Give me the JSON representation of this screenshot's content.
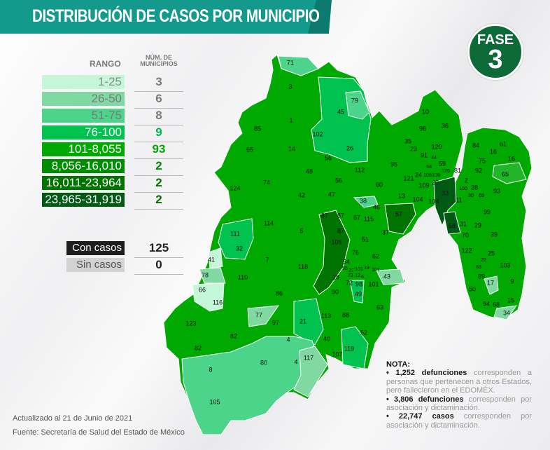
{
  "header": {
    "title": "DISTRIBUCIÓN DE CASOS POR MUNICIPIO"
  },
  "badge": {
    "label": "FASE",
    "number": "3",
    "color": "#0b6a37"
  },
  "legend": {
    "range_header": "RANGO",
    "count_header_line1": "NÚM. DE",
    "count_header_line2": "MUNICIPIOS",
    "rows": [
      {
        "range": "1-25",
        "count": "3",
        "color": "#c4f7d8",
        "text_color": "#8a8a8a",
        "count_color": "#7a7a7a"
      },
      {
        "range": "26-50",
        "count": "6",
        "color": "#7fd9a0",
        "text_color": "#7a7a7a",
        "count_color": "#7a7a7a"
      },
      {
        "range": "51-75",
        "count": "8",
        "color": "#4cd48a",
        "text_color": "#7a7a7a",
        "count_color": "#7a7a7a"
      },
      {
        "range": "76-100",
        "count": "9",
        "color": "#00c24f",
        "text_color": "#ffffff",
        "count_color": "#00b84a"
      },
      {
        "range": "101-8,055",
        "count": "93",
        "color": "#00a900",
        "text_color": "#ffffff",
        "count_color": "#00a900"
      },
      {
        "range": "8,056-16,010",
        "count": "2",
        "color": "#008c00",
        "text_color": "#ffffff",
        "count_color": "#008c00"
      },
      {
        "range": "16,011-23,964",
        "count": "2",
        "color": "#007300",
        "text_color": "#ffffff",
        "count_color": "#007300"
      },
      {
        "range": "23,965-31,919",
        "count": "2",
        "color": "#005a14",
        "text_color": "#ffffff",
        "count_color": "#006e00"
      }
    ],
    "status": [
      {
        "label": "Con casos",
        "count": "125",
        "color": "#1e1e1e",
        "text_color": "#ffffff"
      },
      {
        "label": "Sin casos",
        "count": "0",
        "color": "#d2d2d2",
        "text_color": "#555555"
      }
    ]
  },
  "map": {
    "municipality_labels": [
      "71",
      "3",
      "79",
      "45",
      "1",
      "85",
      "102",
      "26",
      "14",
      "65",
      "56",
      "112",
      "48",
      "56",
      "124",
      "74",
      "42",
      "47",
      "38",
      "87",
      "87",
      "67",
      "115",
      "114",
      "5",
      "111",
      "87",
      "106",
      "51",
      "32",
      "7",
      "118",
      "76",
      "54",
      "62",
      "41",
      "110",
      "78",
      "18",
      "72",
      "98",
      "66",
      "116",
      "86",
      "90",
      "49",
      "77",
      "113",
      "88",
      "21",
      "97",
      "123",
      "82",
      "82",
      "4",
      "40",
      "119",
      "107",
      "52",
      "117",
      "4",
      "80",
      "8",
      "105",
      "46",
      "57",
      "37",
      "55",
      "27",
      "101",
      "19",
      "101",
      "73",
      "12",
      "6",
      "43",
      "101",
      "63",
      "10",
      "96",
      "36",
      "35",
      "23",
      "120",
      "91",
      "44",
      "59",
      "95",
      "53",
      "24",
      "108",
      "109",
      "125",
      "81",
      "121",
      "109",
      "20",
      "2",
      "100",
      "28",
      "30",
      "69",
      "93",
      "13",
      "104",
      "104",
      "33",
      "11",
      "84",
      "16",
      "61",
      "16",
      "75",
      "92",
      "65",
      "99",
      "58",
      "31",
      "29",
      "70",
      "39",
      "122",
      "25",
      "22",
      "83",
      "103",
      "89",
      "17",
      "9",
      "50",
      "15",
      "94",
      "68",
      "34",
      "60"
    ]
  },
  "nota": {
    "title": "NOTA:",
    "items": [
      {
        "bold": "1,252 defunciones",
        "text": " corresponden a personas que pertenecen a otros Estados, pero fallecieron en el EDOMÉX."
      },
      {
        "bold": "3,806 defunciones",
        "text": " corresponden por asociación y dictaminación."
      },
      {
        "bold": "22,747 casos",
        "text": " corresponden por asociación y dictaminación."
      }
    ]
  },
  "footer": {
    "updated": "Actualizado al 21 de Junio de 2021",
    "source": "Fuente: Secretaría de Salud del Estado de México"
  }
}
